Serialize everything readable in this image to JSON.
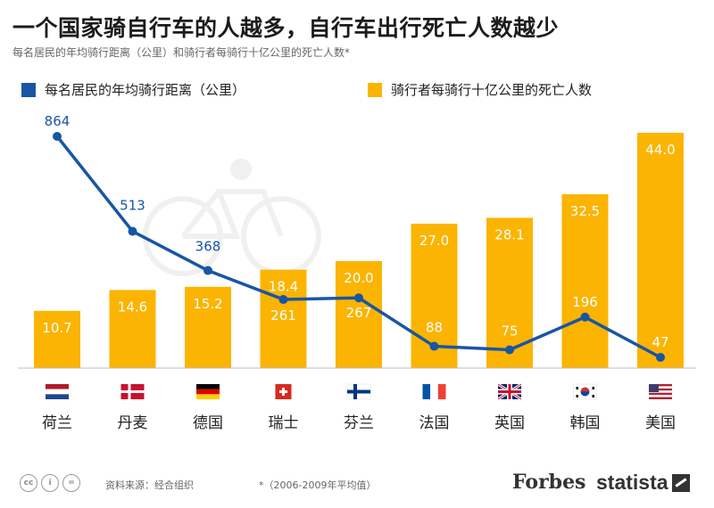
{
  "title": "一个国家骑自行车的人越多，自行车出行死亡人数越少",
  "subtitle": "每名居民的年均骑行距离（公里）和骑行者每骑行十亿公里的死亡人数*",
  "legend": {
    "line_label": "每名居民的年均骑行距离（公里）",
    "bar_label": "骑行者每骑行十亿公里的死亡人数"
  },
  "colors": {
    "bar": "#fbb401",
    "line": "#1856a4",
    "title": "#1c1c1c"
  },
  "chart_data": {
    "type": "bar",
    "categories": [
      "荷兰",
      "丹麦",
      "德国",
      "瑞士",
      "芬兰",
      "法国",
      "英国",
      "韩国",
      "美国"
    ],
    "flags": [
      "flag-netherlands",
      "flag-denmark",
      "flag-germany",
      "flag-switzerland",
      "flag-finland",
      "flag-france",
      "flag-uk",
      "flag-south-korea",
      "flag-usa"
    ],
    "series": [
      {
        "name": "骑行者每骑行十亿公里的死亡人数",
        "type": "bar",
        "values": [
          10.7,
          14.6,
          15.2,
          18.4,
          20.0,
          27.0,
          28.1,
          32.5,
          44.0
        ],
        "labels": [
          "10.7",
          "14.6",
          "15.2",
          "18.4",
          "20.0",
          "27.0",
          "28.1",
          "32.5",
          "44.0"
        ]
      },
      {
        "name": "每名居民的年均骑行距离（公里）",
        "type": "line",
        "values": [
          864,
          513,
          368,
          261,
          267,
          88,
          75,
          196,
          47
        ],
        "labels": [
          "864",
          "513",
          "368",
          "261",
          "267",
          "88",
          "75",
          "196",
          "47"
        ]
      }
    ]
  },
  "footer": {
    "cc_icons": [
      "cc-icon",
      "by-icon",
      "nd-icon"
    ],
    "source": "资料来源：经合组织",
    "note": "*（2006-2009年平均值）",
    "brand_forbes": "Forbes",
    "brand_statista": "statista"
  }
}
